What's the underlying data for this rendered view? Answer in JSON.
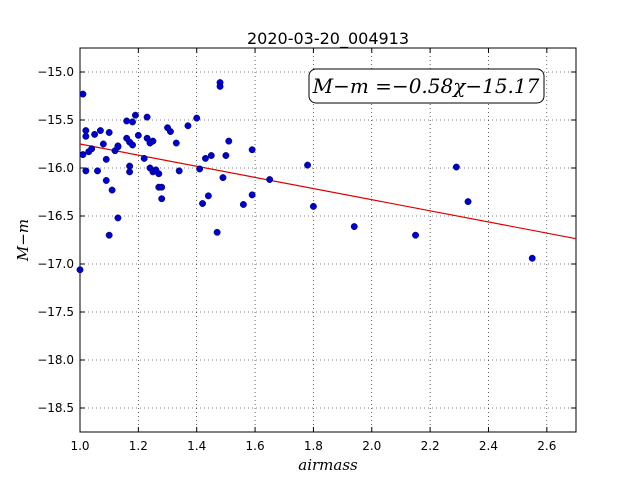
{
  "chart_data": {
    "type": "scatter",
    "title": "2020-03-20_004913",
    "xlabel": "airmass",
    "ylabel": "M−m",
    "xlim": [
      1.0,
      2.7
    ],
    "ylim": [
      -18.75,
      -14.75
    ],
    "y_inverted": true,
    "x_ticks": [
      1.0,
      1.2,
      1.4,
      1.6,
      1.8,
      2.0,
      2.2,
      2.4,
      2.6
    ],
    "x_tick_labels": [
      "1.0",
      "1.2",
      "1.4",
      "1.6",
      "1.8",
      "2.0",
      "2.2",
      "2.4",
      "2.6"
    ],
    "y_ticks": [
      -15.0,
      -15.5,
      -16.0,
      -16.5,
      -17.0,
      -17.5,
      -18.0,
      -18.5
    ],
    "y_tick_labels": [
      "−15.0",
      "−15.5",
      "−16.0",
      "−16.5",
      "−17.0",
      "−17.5",
      "−18.0",
      "−18.5"
    ],
    "grid": true,
    "annotation": "M−m =−0.58χ−15.17",
    "series": [
      {
        "color": "#0000cc",
        "x": [
          1.0,
          1.01,
          1.01,
          1.02,
          1.02,
          1.02,
          1.03,
          1.04,
          1.05,
          1.06,
          1.07,
          1.08,
          1.09,
          1.09,
          1.1,
          1.1,
          1.11,
          1.12,
          1.13,
          1.13,
          1.13,
          1.16,
          1.16,
          1.17,
          1.17,
          1.17,
          1.18,
          1.18,
          1.19,
          1.2,
          1.22,
          1.23,
          1.23,
          1.24,
          1.24,
          1.25,
          1.25,
          1.26,
          1.27,
          1.27,
          1.28,
          1.28,
          1.3,
          1.31,
          1.33,
          1.34,
          1.37,
          1.4,
          1.41,
          1.42,
          1.43,
          1.44,
          1.45,
          1.47,
          1.48,
          1.48,
          1.49,
          1.5,
          1.51,
          1.56,
          1.59,
          1.59,
          1.65,
          1.78,
          1.8,
          1.94,
          2.15,
          2.29,
          2.33,
          2.55
        ],
        "y": [
          -17.06,
          -15.23,
          -15.86,
          -15.61,
          -15.67,
          -16.03,
          -15.83,
          -15.8,
          -15.65,
          -16.03,
          -15.61,
          -15.75,
          -15.91,
          -16.13,
          -16.7,
          -15.63,
          -16.23,
          -15.82,
          -15.77,
          -16.52,
          -15.78,
          -15.51,
          -15.69,
          -15.73,
          -15.98,
          -16.04,
          -15.52,
          -15.76,
          -15.45,
          -15.66,
          -15.9,
          -15.47,
          -15.69,
          -15.74,
          -16.0,
          -15.72,
          -16.04,
          -16.02,
          -16.06,
          -16.2,
          -16.2,
          -16.32,
          -15.58,
          -15.62,
          -15.74,
          -16.03,
          -15.56,
          -15.48,
          -16.01,
          -16.37,
          -15.9,
          -16.29,
          -15.87,
          -16.67,
          -15.11,
          -15.15,
          -16.1,
          -15.87,
          -15.72,
          -16.38,
          -15.81,
          -16.28,
          -16.12,
          -15.97,
          -16.4,
          -16.61,
          -16.7,
          -15.99,
          -16.35,
          -16.94
        ]
      }
    ],
    "fit_line": {
      "name": "fit",
      "color": "#dd0000",
      "x": [
        1.0,
        2.7
      ],
      "y": [
        -15.75,
        -16.736
      ]
    }
  }
}
